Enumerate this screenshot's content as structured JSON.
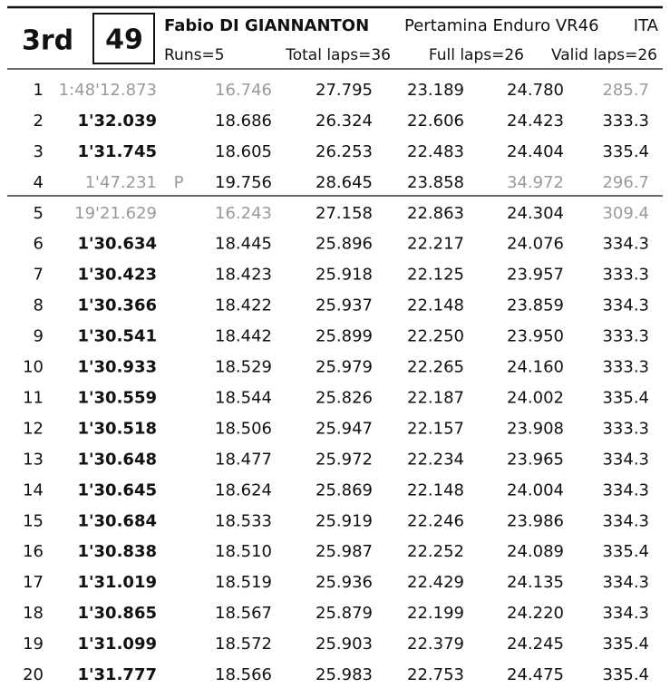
{
  "header": {
    "position": "3rd",
    "number": "49",
    "rider": "Fabio DI GIANNANTON",
    "team": "Pertamina Enduro VR46",
    "nation": "ITA",
    "runs": "Runs=5",
    "total_laps": "Total laps=36",
    "full_laps": "Full laps=26",
    "valid_laps": "Valid laps=26"
  },
  "muted_color": "#9a9a9a",
  "rows": [
    {
      "lap": "1",
      "time": "1:48'12.873",
      "s1": "16.746",
      "s2": "27.795",
      "s3": "23.189",
      "s4": "24.780",
      "speed": "285.7",
      "muted": [
        "time",
        "s1",
        "speed"
      ]
    },
    {
      "lap": "2",
      "time": "1'32.039",
      "s1": "18.686",
      "s2": "26.324",
      "s3": "22.606",
      "s4": "24.423",
      "speed": "333.3"
    },
    {
      "lap": "3",
      "time": "1'31.745",
      "s1": "18.605",
      "s2": "26.253",
      "s3": "22.483",
      "s4": "24.404",
      "speed": "335.4"
    },
    {
      "lap": "4",
      "time": "1'47.231",
      "pit": "P",
      "s1": "19.756",
      "s2": "28.645",
      "s3": "23.858",
      "s4": "34.972",
      "speed": "296.7",
      "muted": [
        "time",
        "pit",
        "s4",
        "speed"
      ]
    },
    {
      "lap": "5",
      "time": "19'21.629",
      "s1": "16.243",
      "s2": "27.158",
      "s3": "22.863",
      "s4": "24.304",
      "speed": "309.4",
      "muted": [
        "time",
        "s1",
        "speed"
      ]
    },
    {
      "lap": "6",
      "time": "1'30.634",
      "s1": "18.445",
      "s2": "25.896",
      "s3": "22.217",
      "s4": "24.076",
      "speed": "334.3"
    },
    {
      "lap": "7",
      "time": "1'30.423",
      "s1": "18.423",
      "s2": "25.918",
      "s3": "22.125",
      "s4": "23.957",
      "speed": "333.3"
    },
    {
      "lap": "8",
      "time": "1'30.366",
      "s1": "18.422",
      "s2": "25.937",
      "s3": "22.148",
      "s4": "23.859",
      "speed": "334.3"
    },
    {
      "lap": "9",
      "time": "1'30.541",
      "s1": "18.442",
      "s2": "25.899",
      "s3": "22.250",
      "s4": "23.950",
      "speed": "333.3"
    },
    {
      "lap": "10",
      "time": "1'30.933",
      "s1": "18.529",
      "s2": "25.979",
      "s3": "22.265",
      "s4": "24.160",
      "speed": "333.3"
    },
    {
      "lap": "11",
      "time": "1'30.559",
      "s1": "18.544",
      "s2": "25.826",
      "s3": "22.187",
      "s4": "24.002",
      "speed": "335.4"
    },
    {
      "lap": "12",
      "time": "1'30.518",
      "s1": "18.506",
      "s2": "25.947",
      "s3": "22.157",
      "s4": "23.908",
      "speed": "333.3"
    },
    {
      "lap": "13",
      "time": "1'30.648",
      "s1": "18.477",
      "s2": "25.972",
      "s3": "22.234",
      "s4": "23.965",
      "speed": "334.3"
    },
    {
      "lap": "14",
      "time": "1'30.645",
      "s1": "18.624",
      "s2": "25.869",
      "s3": "22.148",
      "s4": "24.004",
      "speed": "334.3"
    },
    {
      "lap": "15",
      "time": "1'30.684",
      "s1": "18.533",
      "s2": "25.919",
      "s3": "22.246",
      "s4": "23.986",
      "speed": "334.3"
    },
    {
      "lap": "16",
      "time": "1'30.838",
      "s1": "18.510",
      "s2": "25.987",
      "s3": "22.252",
      "s4": "24.089",
      "speed": "335.4"
    },
    {
      "lap": "17",
      "time": "1'31.019",
      "s1": "18.519",
      "s2": "25.936",
      "s3": "22.429",
      "s4": "24.135",
      "speed": "334.3"
    },
    {
      "lap": "18",
      "time": "1'30.865",
      "s1": "18.567",
      "s2": "25.879",
      "s3": "22.199",
      "s4": "24.220",
      "speed": "334.3"
    },
    {
      "lap": "19",
      "time": "1'31.099",
      "s1": "18.572",
      "s2": "25.903",
      "s3": "22.379",
      "s4": "24.245",
      "speed": "335.4"
    },
    {
      "lap": "20",
      "time": "1'31.777",
      "s1": "18.566",
      "s2": "25.983",
      "s3": "22.753",
      "s4": "24.475",
      "speed": "335.4"
    }
  ]
}
